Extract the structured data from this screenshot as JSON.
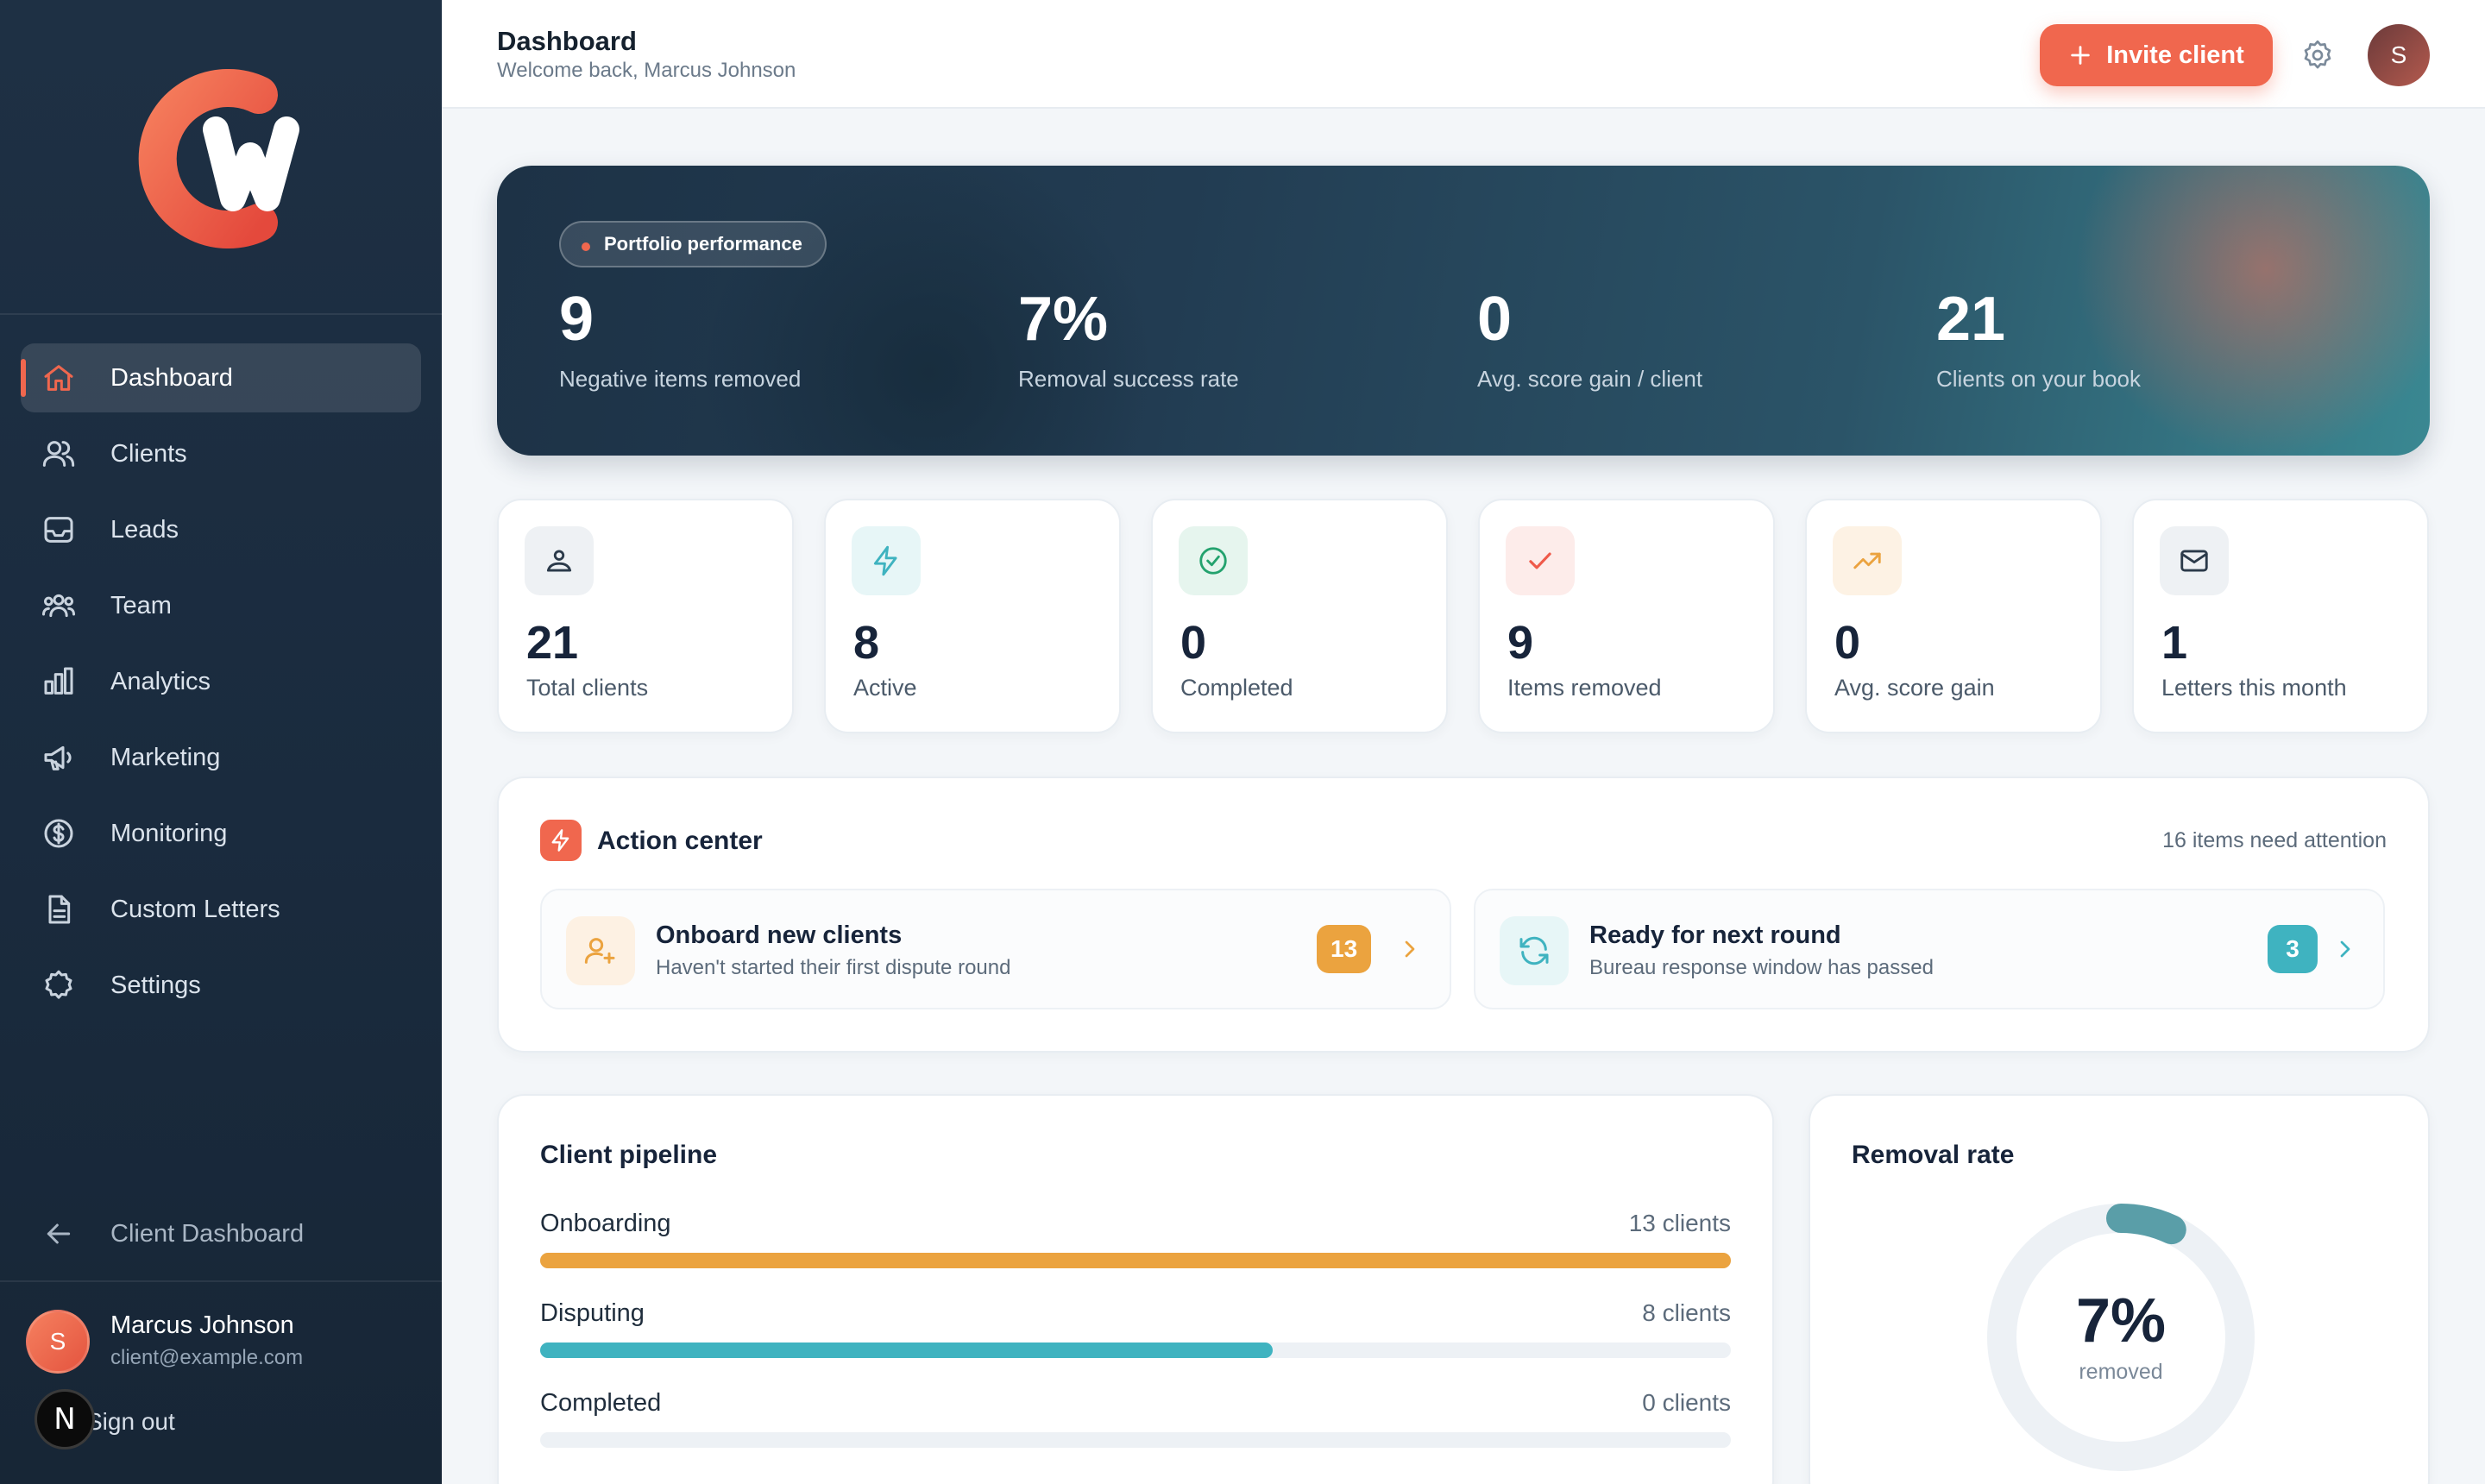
{
  "colors": {
    "accent": "#f0674e",
    "sidebar": "#1e3044",
    "orange": "#eba33f",
    "teal": "#3fb3c0",
    "green": "#24a26e",
    "donut_track": "#edf1f5",
    "donut_fill": "#5a9ea8"
  },
  "sidebar": {
    "items": [
      {
        "label": "Dashboard",
        "icon": "home-icon"
      },
      {
        "label": "Clients",
        "icon": "users-icon"
      },
      {
        "label": "Leads",
        "icon": "inbox-icon"
      },
      {
        "label": "Team",
        "icon": "team-icon"
      },
      {
        "label": "Analytics",
        "icon": "bar-chart-icon"
      },
      {
        "label": "Marketing",
        "icon": "megaphone-icon"
      },
      {
        "label": "Monitoring",
        "icon": "dollar-circle-icon"
      },
      {
        "label": "Custom Letters",
        "icon": "document-icon"
      },
      {
        "label": "Settings",
        "icon": "gear-icon"
      }
    ],
    "back_label": "Client Dashboard",
    "user": {
      "initial": "S",
      "name": "Marcus Johnson",
      "email": "client@example.com"
    },
    "signout_label": "Sign out",
    "n_badge": "N"
  },
  "header": {
    "title": "Dashboard",
    "subtitle": "Welcome back, Marcus Johnson",
    "invite_label": "Invite client",
    "avatar_initial": "S"
  },
  "hero": {
    "pill": "Portfolio performance",
    "stats": [
      {
        "value": "9",
        "label": "Negative items removed"
      },
      {
        "value": "7%",
        "label": "Removal success rate"
      },
      {
        "value": "0",
        "label": "Avg. score gain / client"
      },
      {
        "value": "21",
        "label": "Clients on your book"
      }
    ]
  },
  "stats": [
    {
      "value": "21",
      "label": "Total clients",
      "icon": "user-icon"
    },
    {
      "value": "8",
      "label": "Active",
      "icon": "lightning-icon"
    },
    {
      "value": "0",
      "label": "Completed",
      "icon": "check-circle-icon"
    },
    {
      "value": "9",
      "label": "Items removed",
      "icon": "check-icon"
    },
    {
      "value": "0",
      "label": "Avg. score gain",
      "icon": "trend-up-icon"
    },
    {
      "value": "1",
      "label": "Letters this month",
      "icon": "mail-icon"
    }
  ],
  "action_center": {
    "title": "Action center",
    "count_text": "16 items need attention",
    "items": [
      {
        "title": "Onboard new clients",
        "subtitle": "Haven't started their first dispute round",
        "count": "13",
        "icon": "user-plus-icon"
      },
      {
        "title": "Ready for next round",
        "subtitle": "Bureau response window has passed",
        "count": "3",
        "icon": "refresh-icon"
      }
    ]
  },
  "pipeline": {
    "title": "Client pipeline",
    "rows": [
      {
        "label": "Onboarding",
        "count_text": "13 clients",
        "fraction": 1.0
      },
      {
        "label": "Disputing",
        "count_text": "8 clients",
        "fraction": 0.615
      },
      {
        "label": "Completed",
        "count_text": "0 clients",
        "fraction": 0
      }
    ]
  },
  "removal": {
    "title": "Removal rate",
    "value": "7%",
    "label": "removed",
    "fraction": 0.07
  }
}
